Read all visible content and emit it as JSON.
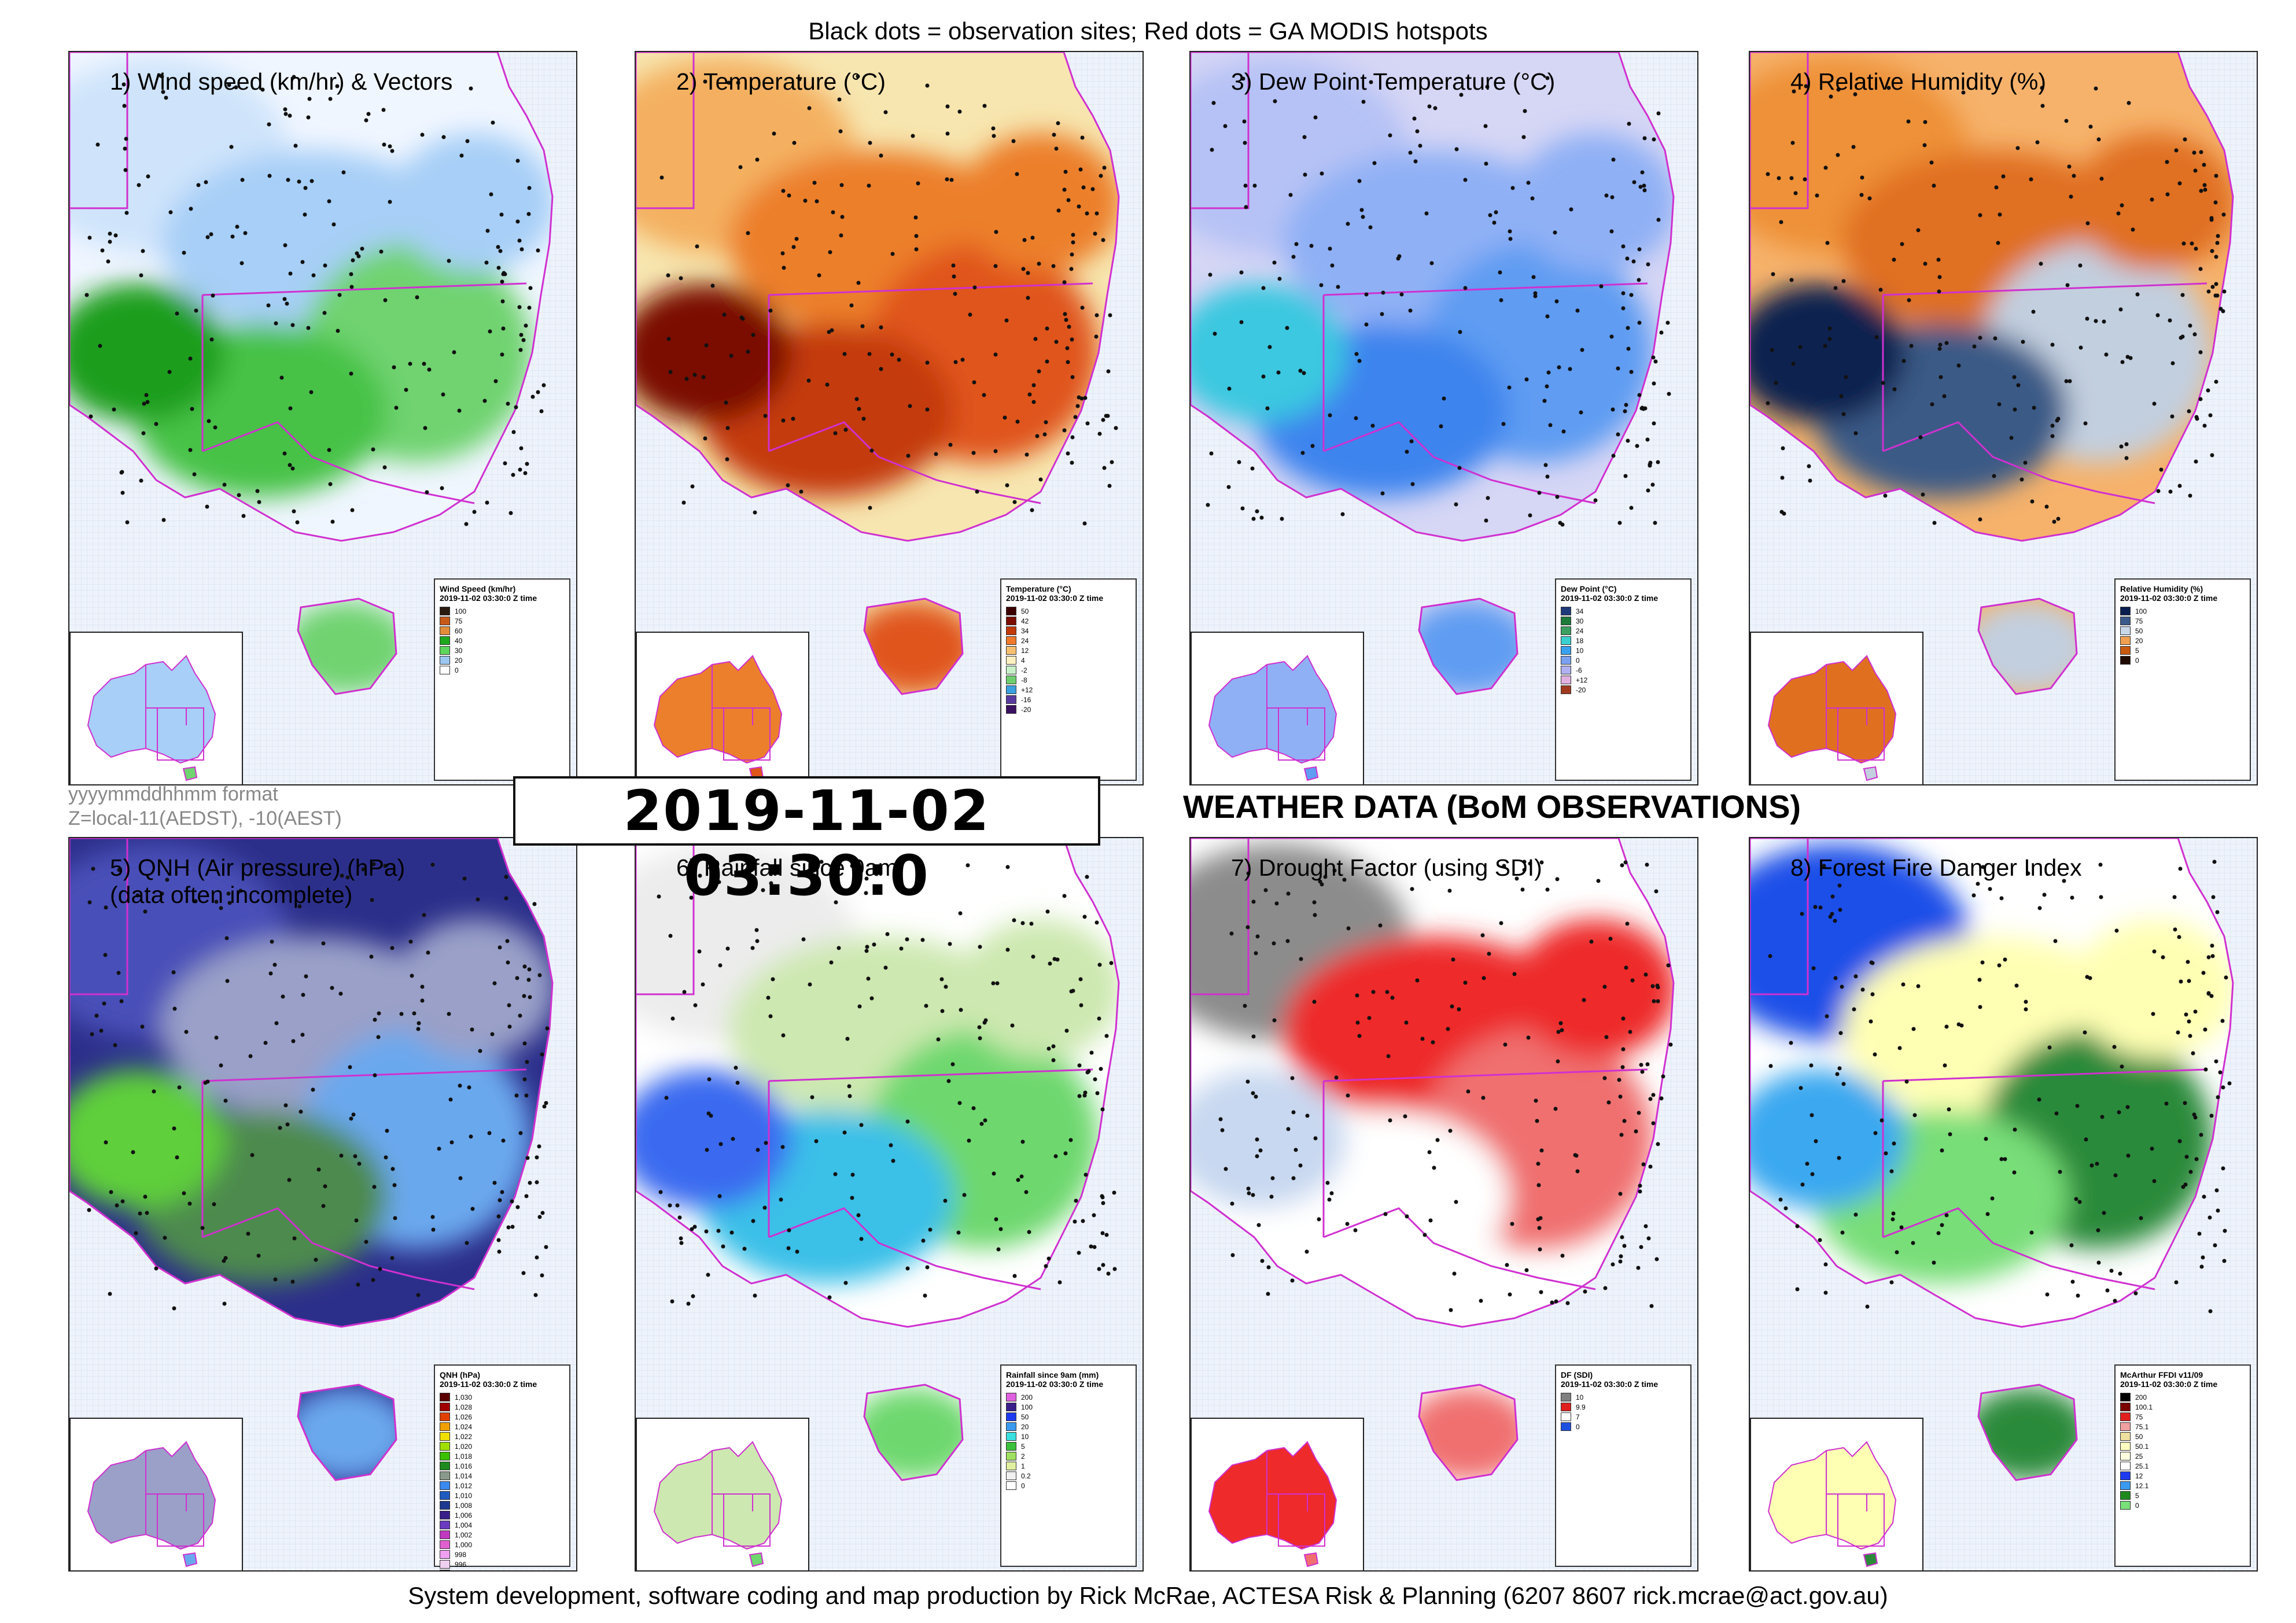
{
  "header": {
    "note": "Black dots = observation sites; Red dots = GA MODIS hotspots"
  },
  "footer": {
    "credit": "System development, software coding and map production by Rick McRae, ACTESA Risk & Planning (6207 8607 rick.mcrae@act.gov.au)"
  },
  "timestamp": {
    "value": "2019-11-02 03:30:0",
    "format_line1": "yyyymmddhhmm format",
    "format_line2": "Z=local-11(AEDST), -10(AEST)"
  },
  "heading": "WEATHER DATA (BoM OBSERVATIONS)",
  "panels": [
    {
      "title": "1) Wind speed (km/hr) & Vectors",
      "title2": "",
      "legend_title": "Wind Speed (km/hr)",
      "legend_time": "2019-11-02 03:30:0 Z time",
      "scale": [
        [
          "100",
          "#2b1b0e"
        ],
        [
          "75",
          "#c85a19"
        ],
        [
          "60",
          "#e38d3a"
        ],
        [
          "40",
          "#1ea81e"
        ],
        [
          "30",
          "#5dd65d"
        ],
        [
          "20",
          "#9cc7f0"
        ],
        [
          "0",
          "#ffffff"
        ]
      ],
      "colors": [
        "#f0f6ff",
        "#cfe4fb",
        "#a7cff7",
        "#6fd36f",
        "#46c246",
        "#1e9e1e"
      ]
    },
    {
      "title": "2) Temperature (°C)",
      "title2": "",
      "legend_title": "Temperature (°C)",
      "legend_time": "2019-11-02 03:30:0 Z time",
      "scale": [
        [
          "50",
          "#3d0000"
        ],
        [
          "42",
          "#7a0d00"
        ],
        [
          "34",
          "#c23a0a"
        ],
        [
          "24",
          "#f07a2a"
        ],
        [
          "12",
          "#f6c070"
        ],
        [
          "4",
          "#fdf0c0"
        ],
        [
          "-2",
          "#c8f0c8"
        ],
        [
          "-8",
          "#6fcf6f"
        ],
        [
          "+12",
          "#3aa0e0"
        ],
        [
          "-16",
          "#5a3aa0"
        ],
        [
          "-20",
          "#3a1060"
        ]
      ],
      "colors": [
        "#f7e6b0",
        "#f4b060",
        "#ec7f2c",
        "#e0551a",
        "#c43a0a",
        "#7a0d00"
      ]
    },
    {
      "title": "3) Dew Point Temperature (°C)",
      "title2": "",
      "legend_title": "Dew Point (°C)",
      "legend_time": "2019-11-02 03:30:0 Z time",
      "scale": [
        [
          "34",
          "#1e3a7a"
        ],
        [
          "30",
          "#1e7a3a"
        ],
        [
          "24",
          "#3aa060"
        ],
        [
          "18",
          "#3ad0d0"
        ],
        [
          "10",
          "#3aa0f0"
        ],
        [
          "0",
          "#7aa0f0"
        ],
        [
          "-6",
          "#b0b0f0"
        ],
        [
          "+12",
          "#e0b0e0"
        ],
        [
          "-20",
          "#a03a1e"
        ]
      ],
      "colors": [
        "#d6d6f5",
        "#b6c2f5",
        "#8fb0f5",
        "#5f9cf2",
        "#3e84ee",
        "#3ac8e0"
      ]
    },
    {
      "title": "4) Relative Humidity (%)",
      "title2": "",
      "legend_title": "Relative Humidity (%)",
      "legend_time": "2019-11-02 03:30:0 Z time",
      "scale": [
        [
          "100",
          "#0a1e50"
        ],
        [
          "75",
          "#3a5a8a"
        ],
        [
          "50",
          "#c8d8e8"
        ],
        [
          "20",
          "#f0a050"
        ],
        [
          "5",
          "#c85a10"
        ],
        [
          "0",
          "#200a00"
        ]
      ],
      "colors": [
        "#f6b26b",
        "#ee9138",
        "#e07020",
        "#c2cfdf",
        "#3a5a86",
        "#0d2350"
      ]
    },
    {
      "title": "5) QNH (Air pressure) (hPa)",
      "title2": "(data often incomplete)",
      "legend_title": "QNH (hPa)",
      "legend_time": "2019-11-02 03:30:0 Z time",
      "scale": [
        [
          "1,030",
          "#5a0000"
        ],
        [
          "1,028",
          "#a00000"
        ],
        [
          "1,026",
          "#e04000"
        ],
        [
          "1,024",
          "#f0a000"
        ],
        [
          "1,022",
          "#f0e000"
        ],
        [
          "1,020",
          "#a0e000"
        ],
        [
          "1,018",
          "#3ac000"
        ],
        [
          "1,016",
          "#1e8a1e"
        ],
        [
          "1,014",
          "#8a9a8a"
        ],
        [
          "1,012",
          "#3a8af0"
        ],
        [
          "1,010",
          "#1e5ac0"
        ],
        [
          "1,008",
          "#1e3a90"
        ],
        [
          "1,006",
          "#3a1e8a"
        ],
        [
          "1,004",
          "#6a3ac0"
        ],
        [
          "1,002",
          "#c03ac0"
        ],
        [
          "1,000",
          "#e060d0"
        ],
        [
          "998",
          "#f0a0f0"
        ],
        [
          "996",
          "#f0d0f0"
        ],
        [
          "994",
          "#ffffff"
        ]
      ],
      "colors": [
        "#2c2f8a",
        "#4a4fb8",
        "#9aa0c8",
        "#6aa8ee",
        "#4e8a4e",
        "#5fcf3a"
      ]
    },
    {
      "title": "6) Rainfall since 9am",
      "title2": "",
      "legend_title": "Rainfall since 9am (mm)",
      "legend_time": "2019-11-02 03:30:0 Z time",
      "scale": [
        [
          "200",
          "#e060e0"
        ],
        [
          "100",
          "#3a1e8a"
        ],
        [
          "50",
          "#1e3af0"
        ],
        [
          "20",
          "#3a9af0"
        ],
        [
          "10",
          "#3ae0e0"
        ],
        [
          "5",
          "#3ac03a"
        ],
        [
          "2",
          "#a0e060"
        ],
        [
          "1",
          "#e0f0a0"
        ],
        [
          "0.2",
          "#f0f0f0"
        ],
        [
          "0",
          "#ffffff"
        ]
      ],
      "colors": [
        "#ffffff",
        "#ececec",
        "#cde8b0",
        "#6ed86e",
        "#3ac0e8",
        "#3a6af0"
      ]
    },
    {
      "title": "7) Drought Factor (using SDI)",
      "title2": "",
      "legend_title": "DF (SDI)",
      "legend_time": "2019-11-02 03:30:0 Z time",
      "scale": [
        [
          "10",
          "#808080"
        ],
        [
          "9.9",
          "#e01e1e"
        ],
        [
          "7",
          "#ffffff"
        ],
        [
          "0",
          "#1e50e0"
        ]
      ],
      "colors": [
        "#ffffff",
        "#8c8c8c",
        "#ee2a2a",
        "#f07070",
        "#ffffff",
        "#c8d8f0"
      ]
    },
    {
      "title": "8) Forest Fire Danger Index",
      "title2": "",
      "legend_title": "McArthur FFDI v11/09",
      "legend_time": "2019-11-02 03:30:0 Z time",
      "scale": [
        [
          "200",
          "#000000"
        ],
        [
          "100.1",
          "#7a0000"
        ],
        [
          "75",
          "#e01e1e"
        ],
        [
          "75.1",
          "#f0a0a0"
        ],
        [
          "50",
          "#f0e0a0"
        ],
        [
          "50.1",
          "#ffffc0"
        ],
        [
          "25",
          "#ffffe0"
        ],
        [
          "25.1",
          "#ffffff"
        ],
        [
          "12",
          "#1e3af0"
        ],
        [
          "12.1",
          "#3a9af0"
        ],
        [
          "5",
          "#1e8a1e"
        ],
        [
          "0",
          "#7ae07a"
        ]
      ],
      "colors": [
        "#ffffff",
        "#1e50e8",
        "#ffffb4",
        "#2a8a3a",
        "#78de78",
        "#3aa8f0"
      ]
    }
  ]
}
